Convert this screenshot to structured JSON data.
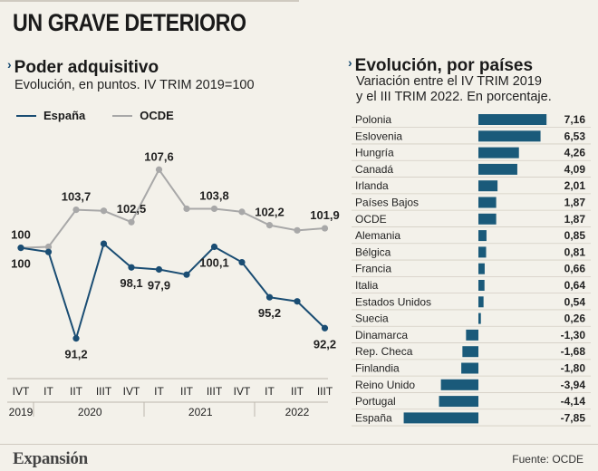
{
  "headline": "UN GRAVE DETERIORO",
  "left": {
    "title": "Poder adquisitivo",
    "subtitle": "Evolución, en puntos. IV TRIM 2019=100",
    "legend": [
      "España",
      "OCDE"
    ]
  },
  "right": {
    "title": "Evolución, por países",
    "subtitle_1": "Variación entre el IV TRIM 2019",
    "subtitle_2": "y el III TRIM 2022. En porcentaje."
  },
  "colors": {
    "spain": "#1a4d73",
    "oecd": "#a8a8a8",
    "bar": "#1a5a7a",
    "chevron": "#1a4d73"
  },
  "footer": {
    "brand": "Expansión",
    "source": "Fuente: OCDE"
  },
  "chart_data": [
    {
      "type": "line",
      "categories": [
        "IVT",
        "IT",
        "IIT",
        "IIIT",
        "IVT",
        "IT",
        "IIT",
        "IIIT",
        "IVT",
        "IT",
        "IIT",
        "IIIT"
      ],
      "year_labels": [
        "2019",
        "2020",
        "2021",
        "2022"
      ],
      "ylim": [
        88,
        110
      ],
      "series": [
        {
          "name": "España",
          "values": [
            100,
            99.6,
            91.2,
            100.4,
            98.1,
            97.9,
            97.4,
            100.1,
            98.6,
            95.2,
            94.8,
            92.2
          ],
          "labels": [
            "100",
            "",
            "91,2",
            "",
            "98,1",
            "97,9",
            "",
            "100,1",
            "",
            "95,2",
            "",
            "92,2"
          ]
        },
        {
          "name": "OCDE",
          "values": [
            100,
            100.1,
            103.7,
            103.6,
            102.5,
            107.6,
            103.8,
            103.8,
            103.5,
            102.2,
            101.7,
            101.9
          ],
          "labels": [
            "100",
            "",
            "103,7",
            "",
            "102,5",
            "107,6",
            "",
            "103,8",
            "",
            "102,2",
            "",
            "101,9"
          ]
        }
      ]
    },
    {
      "type": "bar",
      "orientation": "horizontal",
      "categories": [
        "Polonia",
        "Eslovenia",
        "Hungría",
        "Canadá",
        "Irlanda",
        "Países Bajos",
        "OCDE",
        "Alemania",
        "Bélgica",
        "Francia",
        "Italia",
        "Estados Unidos",
        "Suecia",
        "Dinamarca",
        "Rep. Checa",
        "Finlandia",
        "Reino Unido",
        "Portugal",
        "España"
      ],
      "values": [
        7.16,
        6.53,
        4.26,
        4.09,
        2.01,
        1.87,
        1.87,
        0.85,
        0.81,
        0.66,
        0.64,
        0.54,
        0.26,
        -1.3,
        -1.68,
        -1.8,
        -3.94,
        -4.14,
        -7.85
      ],
      "value_labels": [
        "7,16",
        "6,53",
        "4,26",
        "4,09",
        "2,01",
        "1,87",
        "1,87",
        "0,85",
        "0,81",
        "0,66",
        "0,64",
        "0,54",
        "0,26",
        "-1,30",
        "-1,68",
        "-1,80",
        "-3,94",
        "-4,14",
        "-7,85"
      ]
    }
  ]
}
